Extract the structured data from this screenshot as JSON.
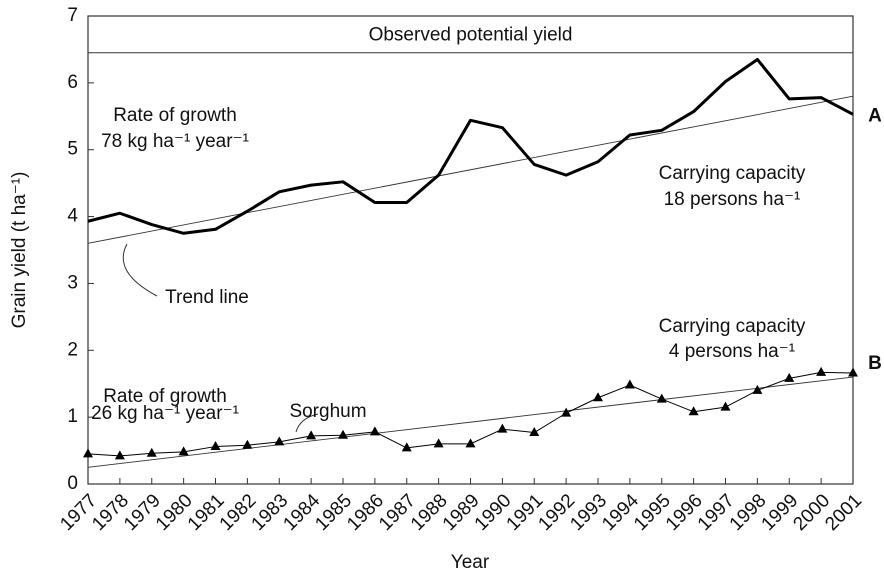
{
  "chart_data": {
    "type": "line",
    "ylabel": "Grain yield (t ha⁻¹)",
    "xlabel": "Year",
    "categories": [
      "1977",
      "1978",
      "1979",
      "1980",
      "1981",
      "1982",
      "1983",
      "1984",
      "1985",
      "1986",
      "1987",
      "1988",
      "1989",
      "1990",
      "1991",
      "1992",
      "1993",
      "1994",
      "1995",
      "1996",
      "1997",
      "1998",
      "1999",
      "2000",
      "2001"
    ],
    "series": [
      {
        "name": "A",
        "color": "#000000",
        "marker": "none",
        "trend": [
          3.6,
          5.8
        ],
        "values": [
          3.93,
          4.05,
          3.88,
          3.75,
          3.81,
          4.08,
          4.37,
          4.47,
          4.52,
          4.21,
          4.21,
          4.62,
          5.44,
          5.33,
          4.78,
          4.62,
          4.82,
          5.22,
          5.29,
          5.57,
          6.02,
          6.35,
          5.76,
          5.78,
          5.53
        ]
      },
      {
        "name": "B",
        "color": "#000000",
        "marker": "triangle",
        "trend": [
          0.25,
          1.6
        ],
        "values": [
          0.45,
          0.42,
          0.46,
          0.48,
          0.56,
          0.58,
          0.63,
          0.72,
          0.73,
          0.78,
          0.54,
          0.6,
          0.6,
          0.82,
          0.77,
          1.06,
          1.29,
          1.48,
          1.27,
          1.08,
          1.15,
          1.4,
          1.58,
          1.67,
          1.66
        ]
      }
    ],
    "potential_yield": {
      "label": "Observed potential yield",
      "value": 6.45
    },
    "annotations": [
      "Rate of growth",
      "78 kg ha⁻¹ year⁻¹",
      "Carrying capacity",
      "18 persons ha⁻¹",
      "Trend line",
      "Carrying capacity",
      "4 persons ha⁻¹",
      "Rate of growth",
      "26 kg ha⁻¹ year⁻¹",
      "Sorghum"
    ],
    "ylim": [
      0,
      7
    ],
    "yticks": [
      0,
      1,
      2,
      3,
      4,
      5,
      6,
      7
    ]
  }
}
